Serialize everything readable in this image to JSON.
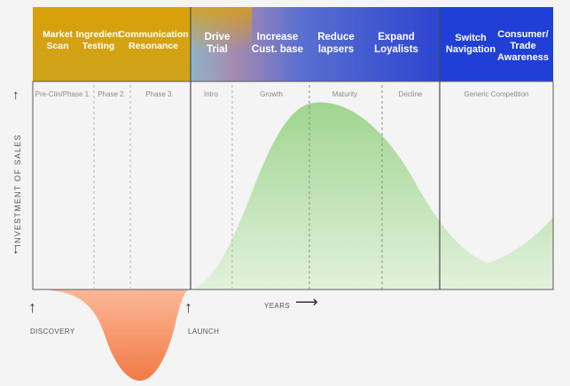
{
  "header": {
    "stages": [
      {
        "label": "Market\nScan"
      },
      {
        "label": "Ingredient\nTesting"
      },
      {
        "label": "Communication\nResonance"
      },
      {
        "label": "Drive\nTrial"
      },
      {
        "label": "Increase\nCust. base"
      },
      {
        "label": "Reduce\nlapsers"
      },
      {
        "label": "Expand\nLoyalists"
      },
      {
        "label": "Switch\nNavigation"
      },
      {
        "label": "Consumer/\nTrade\nAwareness"
      }
    ],
    "colors": {
      "pre_launch": "#d6a20a",
      "growth_start": "#7bb8c4",
      "growth_end": "#2f3fc9",
      "generic": "#1f3fd6"
    }
  },
  "phases": [
    {
      "label": "Pre-Clin/Phase 1."
    },
    {
      "label": "Phase 2."
    },
    {
      "label": "Phase 3."
    },
    {
      "label": "Intro"
    },
    {
      "label": "Growth"
    },
    {
      "label": "Maturity"
    },
    {
      "label": "Decline"
    },
    {
      "label": "Generic Competition"
    }
  ],
  "axes": {
    "y_title": "INVESTMENT OF SALES",
    "x_title": "YEARS",
    "discovery": "DISCOVERY",
    "launch": "LAUNCH"
  },
  "colors": {
    "sales_fill": "#bfe3b4",
    "investment_fill": "#f79a6e",
    "grid_line": "#555555",
    "dashed_line": "#b5b5b5"
  }
}
